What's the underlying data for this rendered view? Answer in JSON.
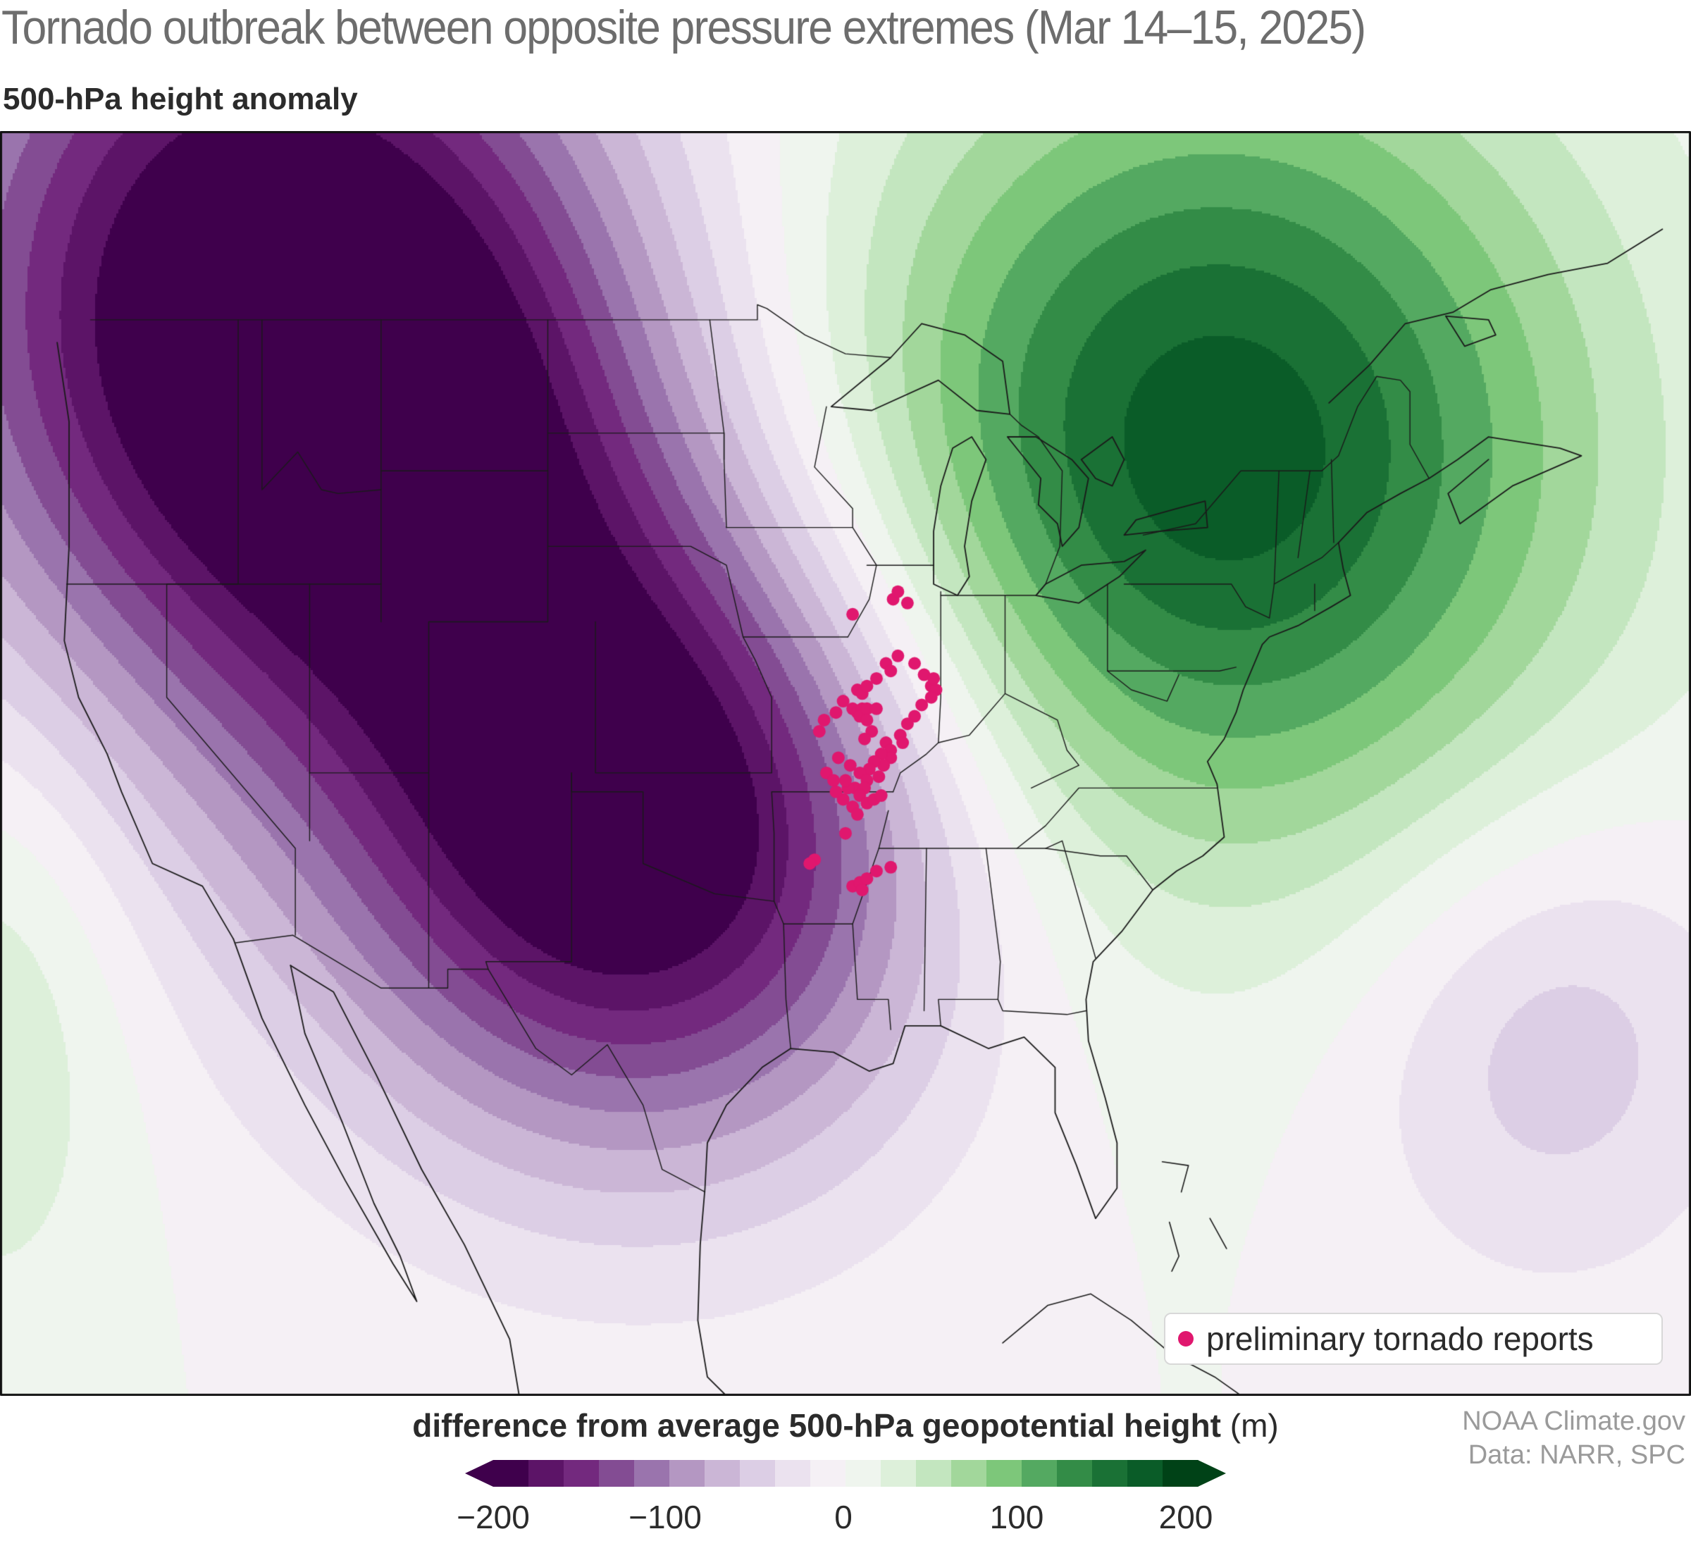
{
  "title": "Tornado outbreak between opposite pressure extremes (Mar 14–15, 2025)",
  "subtitle": "500-hPa height anomaly",
  "legend": {
    "marker_label": "preliminary tornado reports",
    "marker_color": "#e0176e"
  },
  "colorbar": {
    "label_bold": "difference from average 500-hPa geopotential height",
    "label_units": "(m)",
    "ticks": [
      "−200",
      "−100",
      "0",
      "100",
      "200"
    ],
    "range": [
      -200,
      200
    ],
    "step": 20,
    "colors": [
      "#3f004c",
      "#5c1467",
      "#73297e",
      "#834c93",
      "#9a74ad",
      "#b497c2",
      "#cbb6d6",
      "#dccee5",
      "#ebe2ef",
      "#f5f0f5",
      "#eff5ee",
      "#ddf0da",
      "#c3e6bf",
      "#a2d79b",
      "#7dc77a",
      "#54a961",
      "#338c47",
      "#1a7135",
      "#0a5c28",
      "#004217"
    ],
    "extend": "both"
  },
  "credits": {
    "line1": "NOAA Climate.gov",
    "line2": "Data: NARR, SPC"
  },
  "map": {
    "region": "Continental United States, southern Canada and northern Mexico",
    "anomaly_centers": [
      {
        "name": "trough-southern-plains",
        "sign": "negative",
        "approx_lon": -100,
        "approx_lat": 35.5
      },
      {
        "name": "trough-pacific-northwest",
        "sign": "negative",
        "approx_lon": -116,
        "approx_lat": 49
      },
      {
        "name": "ridge-northeast",
        "sign": "positive",
        "approx_lon": -74,
        "approx_lat": 45
      },
      {
        "name": "weak-low-western-atlantic",
        "sign": "negative",
        "approx_lon": -64,
        "approx_lat": 30
      }
    ],
    "tornado_reports_lonlat": [
      [
        -91.2,
        41.2
      ],
      [
        -89.5,
        41.6
      ],
      [
        -89.3,
        41.8
      ],
      [
        -88.9,
        41.5
      ],
      [
        -89.8,
        39.9
      ],
      [
        -89.6,
        39.7
      ],
      [
        -89.3,
        40.1
      ],
      [
        -88.6,
        39.9
      ],
      [
        -90.2,
        39.5
      ],
      [
        -87.9,
        39.3
      ],
      [
        -87.7,
        39.2
      ],
      [
        -87.9,
        39.0
      ],
      [
        -88.3,
        38.8
      ],
      [
        -88.6,
        38.5
      ],
      [
        -88.9,
        38.3
      ],
      [
        -89.2,
        38.0
      ],
      [
        -89.1,
        37.8
      ],
      [
        -91.2,
        38.7
      ],
      [
        -91.0,
        38.6
      ],
      [
        -90.8,
        38.7
      ],
      [
        -90.9,
        38.5
      ],
      [
        -90.6,
        38.7
      ],
      [
        -90.2,
        38.7
      ],
      [
        -90.6,
        38.4
      ],
      [
        -90.4,
        38.1
      ],
      [
        -90.7,
        37.9
      ],
      [
        -89.8,
        37.8
      ],
      [
        -89.6,
        37.6
      ],
      [
        -89.6,
        37.4
      ],
      [
        -90.0,
        37.5
      ],
      [
        -89.9,
        37.2
      ],
      [
        -90.3,
        37.3
      ],
      [
        -90.5,
        37.1
      ],
      [
        -90.1,
        36.9
      ],
      [
        -90.9,
        37.0
      ],
      [
        -91.3,
        37.2
      ],
      [
        -90.6,
        36.8
      ],
      [
        -91.1,
        36.6
      ],
      [
        -90.7,
        36.6
      ],
      [
        -90.9,
        36.4
      ],
      [
        -91.4,
        36.6
      ],
      [
        -91.5,
        36.8
      ],
      [
        -90.6,
        36.2
      ],
      [
        -90.3,
        36.3
      ],
      [
        -90.0,
        36.4
      ],
      [
        -91.2,
        36.1
      ],
      [
        -91.0,
        35.9
      ],
      [
        -91.6,
        36.3
      ],
      [
        -91.8,
        37.4
      ],
      [
        -92.3,
        37.0
      ],
      [
        -92.0,
        36.8
      ],
      [
        -91.9,
        36.5
      ],
      [
        -91.5,
        35.4
      ],
      [
        -92.8,
        34.7
      ],
      [
        -93.0,
        34.6
      ],
      [
        -91.2,
        34.0
      ],
      [
        -90.9,
        34.1
      ],
      [
        -90.6,
        34.2
      ],
      [
        -90.2,
        34.4
      ],
      [
        -90.8,
        33.9
      ],
      [
        -89.6,
        34.5
      ],
      [
        -91.6,
        38.9
      ],
      [
        -91.9,
        38.6
      ],
      [
        -92.6,
        38.1
      ],
      [
        -92.4,
        38.4
      ],
      [
        -88.2,
        39.6
      ],
      [
        -87.8,
        39.5
      ],
      [
        -91.0,
        39.2
      ],
      [
        -90.8,
        39.1
      ],
      [
        -90.6,
        39.3
      ]
    ]
  }
}
